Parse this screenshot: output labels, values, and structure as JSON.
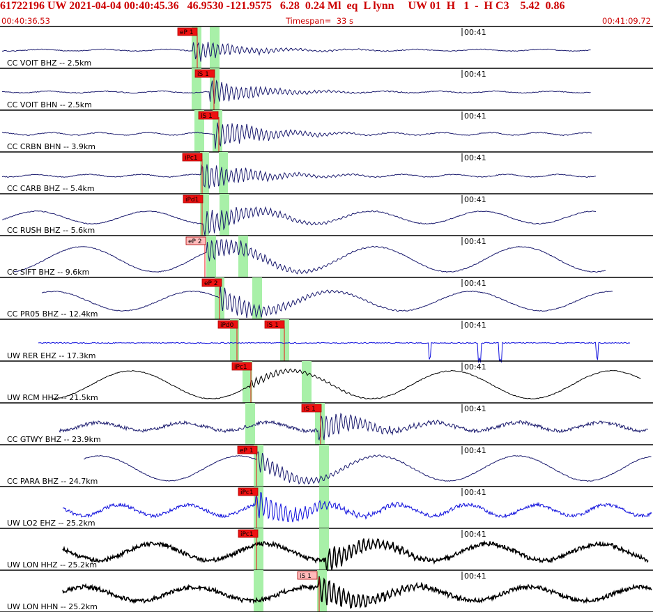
{
  "header": {
    "title": "61722196 UW 2021-04-04 00:40:45.36   46.9530 -121.9575   6.28  0.24 Ml  eq  L lynn     UW 01  H   1  -  H C3    5.42  0.86",
    "start_time": "00:40:36.53",
    "timespan": "Timespan=  33 s",
    "end_time": "00:41:09.72"
  },
  "colors": {
    "header_red": "#cc0000",
    "navy": "#1a1a6e",
    "blue": "#1010dd",
    "black": "#000000",
    "window_green": "#a8f0a8",
    "pick_red": "#ee1111",
    "pick_pink": "#ffbbbb"
  },
  "time_marker": "00:41",
  "traces": [
    {
      "label": "CC VOIT BHZ -- 2.5km",
      "color": "navy",
      "kind": "smooth",
      "amp": 2,
      "period": 90,
      "burst": 280,
      "burst_amp": 18,
      "x_start": 3,
      "x_end": 848,
      "windows": [
        [
          275,
          289
        ],
        [
          301,
          315
        ]
      ],
      "picks": [
        {
          "x": 255,
          "text": "eP 1",
          "style": "red",
          "line": 283
        }
      ]
    },
    {
      "label": "CC VOIT BHN -- 2.5km",
      "color": "navy",
      "kind": "smooth",
      "amp": 2,
      "period": 80,
      "burst": 305,
      "burst_amp": 20,
      "x_start": 3,
      "x_end": 848,
      "windows": [
        [
          275,
          289
        ],
        [
          301,
          315
        ]
      ],
      "picks": [
        {
          "x": 280,
          "text": "iS 1",
          "style": "red",
          "line": 307
        }
      ]
    },
    {
      "label": "CC CRBN BHN -- 3.9km",
      "color": "navy",
      "kind": "smooth",
      "amp": 3,
      "period": 70,
      "burst": 312,
      "burst_amp": 24,
      "x_start": 3,
      "x_end": 850,
      "windows": [
        [
          279,
          293
        ],
        [
          305,
          319
        ]
      ],
      "picks": [
        {
          "x": 285,
          "text": "iS 1",
          "style": "red",
          "line": 314
        }
      ]
    },
    {
      "label": "CC CARB BHZ -- 5.4km",
      "color": "navy",
      "kind": "smooth",
      "amp": 3,
      "period": 75,
      "burst": 292,
      "burst_amp": 24,
      "x_start": 3,
      "x_end": 855,
      "windows": [
        [
          287,
          300
        ],
        [
          314,
          327
        ]
      ],
      "picks": [
        {
          "x": 262,
          "text": "iPc1",
          "style": "red",
          "line": 290
        }
      ]
    },
    {
      "label": "CC RUSH BHZ -- 5.6km",
      "color": "navy",
      "kind": "wave",
      "amp": 9,
      "period": 160,
      "burst": 295,
      "burst_amp": 24,
      "x_start": 3,
      "x_end": 855,
      "windows": [
        [
          287,
          300
        ],
        [
          315,
          329
        ]
      ],
      "picks": [
        {
          "x": 263,
          "text": "iPd1",
          "style": "red",
          "line": 290
        }
      ]
    },
    {
      "label": "CC SIFT BHZ -- 9.6km",
      "color": "navy",
      "kind": "wave",
      "amp": 18,
      "period": 210,
      "burst": 300,
      "burst_amp": 22,
      "x_start": 20,
      "x_end": 870,
      "windows": [
        [
          296,
          310
        ],
        [
          342,
          356
        ]
      ],
      "picks": [
        {
          "x": 267,
          "text": "eP 2",
          "style": "pink",
          "line": 294
        }
      ]
    },
    {
      "label": "CC PR05 BHZ -- 12.4km",
      "color": "navy",
      "kind": "wave",
      "amp": 14,
      "period": 200,
      "burst": 320,
      "burst_amp": 22,
      "x_start": 60,
      "x_end": 880,
      "windows": [
        [
          308,
          322
        ],
        [
          362,
          376
        ]
      ],
      "picks": [
        {
          "x": 290,
          "text": "eP 2",
          "style": "red",
          "line": 315
        }
      ]
    },
    {
      "label": "UW RER EHZ -- 17.3km",
      "color": "blue",
      "kind": "spiky",
      "amp": 1,
      "period": 60,
      "burst": 340,
      "burst_amp": 3,
      "x_start": 55,
      "x_end": 905,
      "windows": [
        [
          330,
          343
        ],
        [
          402,
          415
        ]
      ],
      "picks": [
        {
          "x": 313,
          "text": "iPd0",
          "style": "red",
          "line": 340
        },
        {
          "x": 380,
          "text": "iS 1",
          "style": "red",
          "line": 408
        }
      ]
    },
    {
      "label": "UW RCM HHZ -- 21.5km",
      "color": "black",
      "kind": "wave",
      "amp": 20,
      "period": 230,
      "burst": 362,
      "burst_amp": 8,
      "x_start": 75,
      "x_end": 920,
      "windows": [
        [
          348,
          362
        ],
        [
          433,
          447
        ]
      ],
      "picks": [
        {
          "x": 333,
          "text": "iPc1",
          "style": "red",
          "line": 360
        }
      ]
    },
    {
      "label": "CC GTWY BHZ -- 23.9km",
      "color": "navy",
      "kind": "noisy",
      "amp": 6,
      "period": 120,
      "burst": 460,
      "burst_amp": 22,
      "x_start": 85,
      "x_end": 930,
      "windows": [
        [
          352,
          366
        ],
        [
          452,
          466
        ]
      ],
      "picks": [
        {
          "x": 433,
          "text": "iS 1",
          "style": "red",
          "line": 460
        }
      ]
    },
    {
      "label": "CC PARA BHZ -- 24.7km",
      "color": "navy",
      "kind": "wave",
      "amp": 18,
      "period": 200,
      "burst": 372,
      "burst_amp": 18,
      "x_start": 120,
      "x_end": 935,
      "windows": [
        [
          364,
          378
        ],
        [
          458,
          472
        ]
      ],
      "picks": [
        {
          "x": 341,
          "text": "eP 1",
          "style": "red",
          "line": 368
        }
      ]
    },
    {
      "label": "UW LO2 EHZ -- 25.2km",
      "color": "blue",
      "kind": "noisy",
      "amp": 8,
      "period": 100,
      "burst": 370,
      "burst_amp": 24,
      "x_start": 90,
      "x_end": 935,
      "windows": [
        [
          364,
          378
        ],
        [
          458,
          472
        ]
      ],
      "picks": [
        {
          "x": 342,
          "text": "iPc1",
          "style": "red",
          "line": 368
        }
      ]
    },
    {
      "label": "UW LON HHZ -- 25.2km",
      "color": "black",
      "kind": "thick",
      "amp": 12,
      "period": 160,
      "burst": 470,
      "burst_amp": 20,
      "x_start": 90,
      "x_end": 930,
      "windows": [
        [
          364,
          378
        ],
        [
          458,
          472
        ]
      ],
      "picks": [
        {
          "x": 342,
          "text": "iPc1",
          "style": "red",
          "line": 368
        }
      ]
    },
    {
      "label": "UW LON HHN -- 25.2km",
      "color": "black",
      "kind": "thick",
      "amp": 10,
      "period": 160,
      "burst": 460,
      "burst_amp": 22,
      "x_start": 90,
      "x_end": 935,
      "windows": [
        [
          364,
          378
        ],
        [
          455,
          469
        ]
      ],
      "picks": [
        {
          "x": 427,
          "text": "iS 1",
          "style": "pink",
          "line": 458
        }
      ]
    }
  ]
}
